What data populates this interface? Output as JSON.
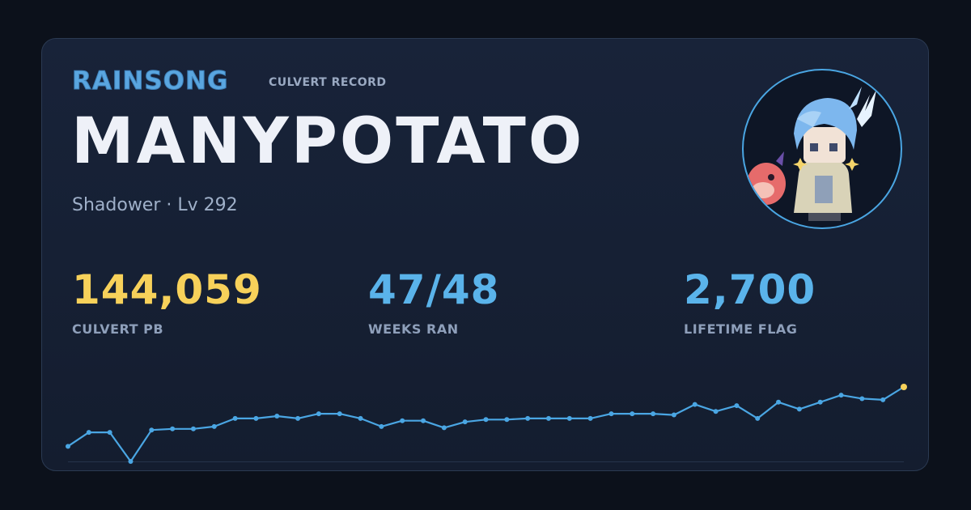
{
  "header": {
    "brand": "RAINSONG",
    "subtitle": "CULVERT RECORD"
  },
  "player": {
    "name": "MANYPOTATO",
    "meta": "Shadower · Lv 292"
  },
  "stats": [
    {
      "value": "144,059",
      "label": "CULVERT PB",
      "color": "#f7d15a"
    },
    {
      "value": "47/48",
      "label": "WEEKS RAN",
      "color": "#5ab3ea"
    },
    {
      "value": "2,700",
      "label": "LIFETIME FLAG",
      "color": "#5ab3ea"
    }
  ],
  "colors": {
    "line": "#4aa6e3",
    "highlight": "#f7d15a",
    "avatar_border": "#4aa6e3"
  },
  "avatar": {
    "icon": "character-avatar-icon"
  },
  "chart_data": {
    "type": "line",
    "x": [
      1,
      2,
      3,
      4,
      5,
      6,
      7,
      8,
      9,
      10,
      11,
      12,
      13,
      14,
      15,
      16,
      17,
      18,
      19,
      20,
      21,
      22,
      23,
      24,
      25,
      26,
      27,
      28,
      29,
      30,
      31,
      32,
      33,
      34,
      35,
      36,
      37,
      38,
      39,
      40,
      41
    ],
    "values": [
      93000,
      105000,
      105000,
      80000,
      107000,
      108000,
      108000,
      110000,
      117000,
      117000,
      119000,
      117000,
      121000,
      121000,
      117000,
      110000,
      115000,
      115000,
      109000,
      114000,
      116000,
      116000,
      117000,
      117000,
      117000,
      117000,
      121000,
      121000,
      121000,
      120000,
      129000,
      123000,
      128000,
      117000,
      131000,
      125000,
      131000,
      137000,
      134000,
      133000,
      144059
    ],
    "highlight_last": true,
    "grid": false
  }
}
